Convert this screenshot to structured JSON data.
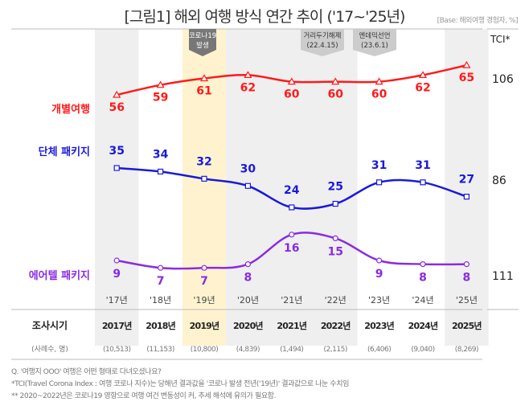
{
  "title": "[그림1] 해외 여행 방식 연간 추이 ('17~'25년)",
  "base": "[Base: 해외여행 경험자, %]",
  "tci_label": "TCI*",
  "annotations": [
    {
      "line1": "코로나19",
      "line2": "발생"
    },
    {
      "line1": "거리두기해제",
      "line2": "(22.4.15)"
    },
    {
      "line1": "엔데믹선언",
      "line2": "(23.6.1)"
    }
  ],
  "chart_data": {
    "type": "line",
    "title": "[그림1] 해외 여행 방식 연간 추이 ('17~'25년)",
    "categories": [
      "'17년",
      "'18년",
      "'19년",
      "'20년",
      "'21년",
      "'22년",
      "'23년",
      "'24년",
      "'25년"
    ],
    "series": [
      {
        "name": "개별여행",
        "values": [
          56,
          59,
          61,
          62,
          60,
          60,
          60,
          62,
          65
        ],
        "tci": "106",
        "color": "#ff1a1a",
        "marker": "triangle"
      },
      {
        "name": "단체 패키지",
        "values": [
          35,
          34,
          32,
          30,
          24,
          25,
          31,
          31,
          27
        ],
        "tci": "86",
        "color": "#1a1adc",
        "marker": "square"
      },
      {
        "name": "에어텔 패키지",
        "values": [
          9,
          7,
          7,
          8,
          16,
          15,
          9,
          8,
          8
        ],
        "tci": "111",
        "color": "#8a2be2",
        "marker": "circle"
      }
    ],
    "highlight_columns": {
      "gray": [
        "'17년",
        "'20년",
        "'21년",
        "'22년",
        "'25년"
      ],
      "yellow": [
        "'19년"
      ]
    },
    "colors": {
      "gray": "#efefef",
      "yellow": "#fff3cf"
    }
  },
  "table": {
    "row1_label": "조사시기",
    "years": [
      "2017년",
      "2018년",
      "2019년",
      "2020년",
      "2021년",
      "2022년",
      "2023년",
      "2024년",
      "2025년"
    ],
    "row2_label": "(사례수, 명)",
    "samples": [
      "(10,513)",
      "(11,153)",
      "(10,800)",
      "(4,839)",
      "(1,494)",
      "(2,115)",
      "(6,406)",
      "(9,040)",
      "(8,269)"
    ]
  },
  "notes": [
    "Q. '여행지 OOO' 여행은 어떤 형태로 다녀오셨나요?",
    "*TCI(Travel Corona Index : 여행 코로나 지수)는 당해년 결과값을 '코로나 발생 전년('19년)' 결과값으로 나눈 수치임",
    "** 2020~2022년은 코로나19 영향으로 여행 여건 변동성이 커, 추세 해석에 유의가 필요함."
  ]
}
